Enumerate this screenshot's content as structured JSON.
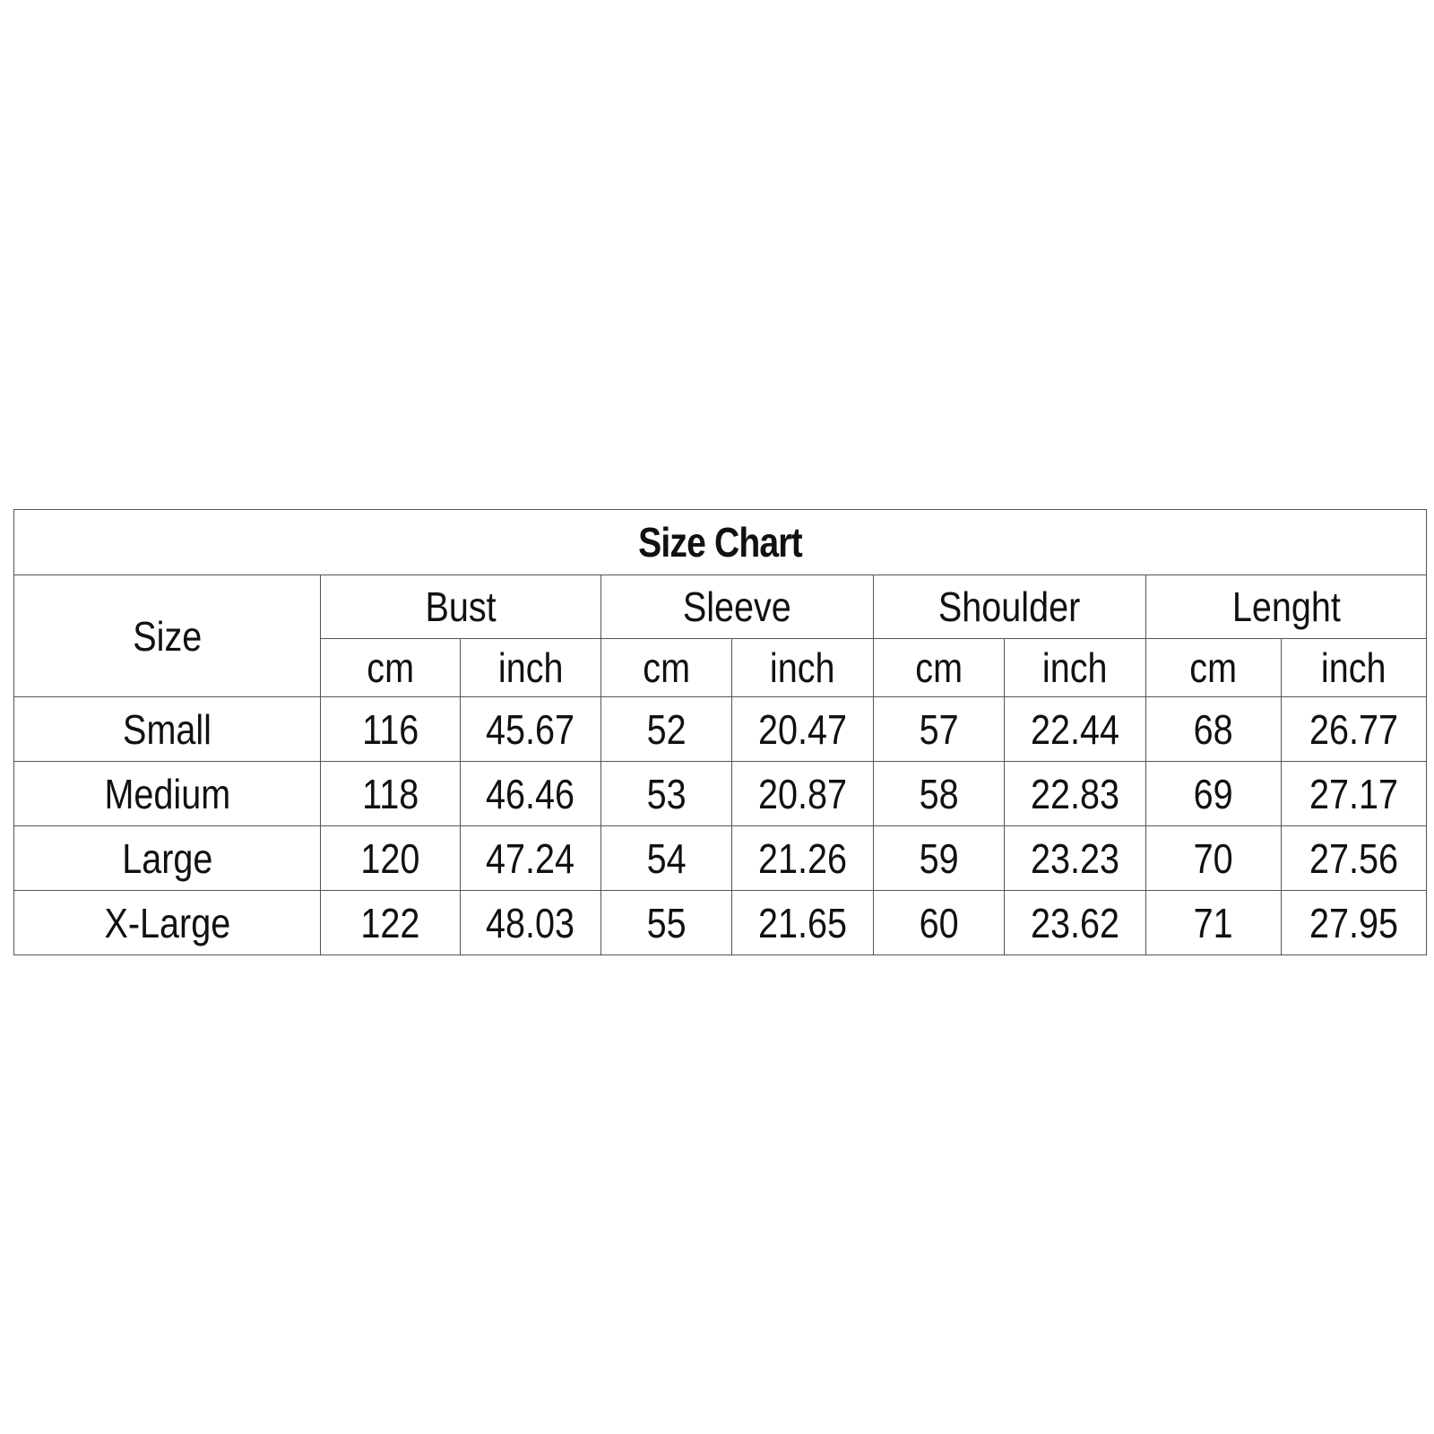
{
  "title": "Size Chart",
  "size_header": "Size",
  "measurement_groups": [
    "Bust",
    "Sleeve",
    "Shoulder",
    "Lenght"
  ],
  "units": [
    "cm",
    "inch",
    "cm",
    "inch",
    "cm",
    "inch",
    "cm",
    "inch"
  ],
  "rows": [
    {
      "size": "Small",
      "values": [
        "116",
        "45.67",
        "52",
        "20.47",
        "57",
        "22.44",
        "68",
        "26.77"
      ]
    },
    {
      "size": "Medium",
      "values": [
        "118",
        "46.46",
        "53",
        "20.87",
        "58",
        "22.83",
        "69",
        "27.17"
      ]
    },
    {
      "size": "Large",
      "values": [
        "120",
        "47.24",
        "54",
        "21.26",
        "59",
        "23.23",
        "70",
        "27.56"
      ]
    },
    {
      "size": "X-Large",
      "values": [
        "122",
        "48.03",
        "55",
        "21.65",
        "60",
        "23.62",
        "71",
        "27.95"
      ]
    }
  ]
}
